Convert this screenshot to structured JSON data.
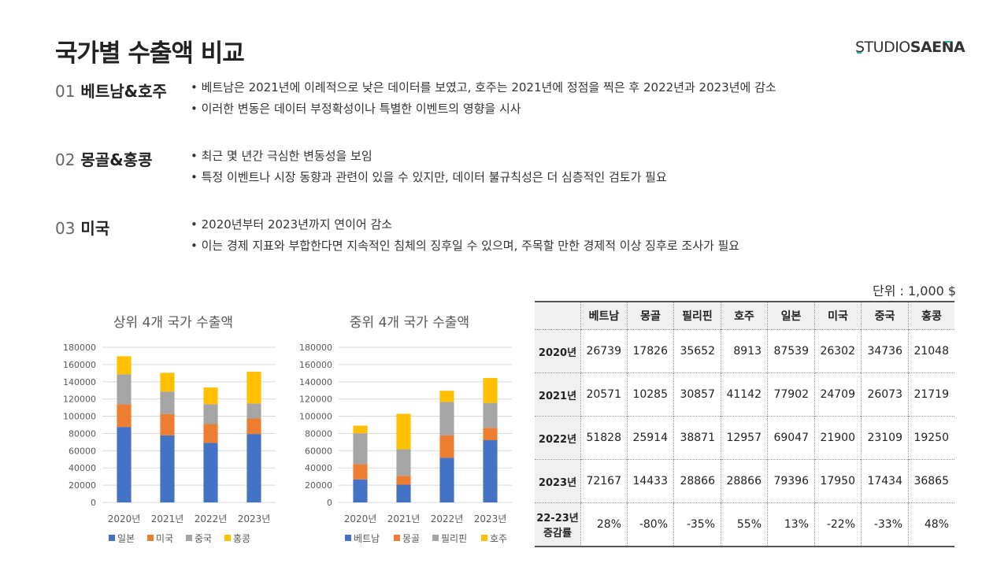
{
  "header": {
    "title": "국가별 수출액 비교",
    "logo_light": "STUDIO",
    "logo_bold": "SAENA"
  },
  "sections": [
    {
      "num": "01",
      "label": "베트남&호주",
      "bullets": [
        "• 베트남은 2021년에 이례적으로 낮은 데이터를 보였고, 호주는 2021년에 정점을 찍은 후 2022년과 2023년에 감소",
        "• 이러한 변동은 데이터 부정확성이나 특별한 이벤트의 영향을 시사"
      ]
    },
    {
      "num": "02",
      "label": "몽골&홍콩",
      "bullets": [
        "• 최근 몇 년간 극심한 변동성을 보임",
        "• 특정 이벤트나 시장 동향과 관련이 있을 수 있지만, 데이터 불규칙성은 더 심층적인 검토가 필요"
      ]
    },
    {
      "num": "03",
      "label": "미국",
      "bullets": [
        "• 2020년부터 2023년까지 연이어 감소",
        "• 이는 경제 지표와 부합한다면 지속적인 침체의 징후일 수 있으며, 주목할 만한 경제적 이상 징후로 조사가 필요"
      ]
    }
  ],
  "unit": "단위 : 1,000 $",
  "chart_data": [
    {
      "type": "bar",
      "stacked": true,
      "title": "상위 4개 국가 수출액",
      "categories": [
        "2020년",
        "2021년",
        "2022년",
        "2023년"
      ],
      "ylim": [
        0,
        180000
      ],
      "yticks": [
        0,
        20000,
        40000,
        60000,
        80000,
        100000,
        120000,
        140000,
        160000,
        180000
      ],
      "grid": true,
      "legend": "bottom",
      "series": [
        {
          "name": "일본",
          "color": "#4472c4",
          "values": [
            87539,
            77902,
            69047,
            79396
          ]
        },
        {
          "name": "미국",
          "color": "#ed7d31",
          "values": [
            26302,
            24709,
            21900,
            17950
          ]
        },
        {
          "name": "중국",
          "color": "#a5a5a5",
          "values": [
            34736,
            26073,
            23109,
            17434
          ]
        },
        {
          "name": "홍콩",
          "color": "#ffc000",
          "values": [
            21048,
            21719,
            19250,
            36865
          ]
        }
      ]
    },
    {
      "type": "bar",
      "stacked": true,
      "title": "중위 4개 국가 수출액",
      "categories": [
        "2020년",
        "2021년",
        "2022년",
        "2023년"
      ],
      "ylim": [
        0,
        180000
      ],
      "yticks": [
        0,
        20000,
        40000,
        60000,
        80000,
        100000,
        120000,
        140000,
        160000,
        180000
      ],
      "grid": true,
      "legend": "bottom",
      "series": [
        {
          "name": "베트남",
          "color": "#4472c4",
          "values": [
            26739,
            20571,
            51828,
            72167
          ]
        },
        {
          "name": "몽골",
          "color": "#ed7d31",
          "values": [
            17826,
            10285,
            25914,
            14433
          ]
        },
        {
          "name": "필리핀",
          "color": "#a5a5a5",
          "values": [
            35652,
            30857,
            38871,
            28866
          ]
        },
        {
          "name": "호주",
          "color": "#ffc000",
          "values": [
            8913,
            41142,
            12957,
            28866
          ]
        }
      ]
    }
  ],
  "table": {
    "columns": [
      "베트남",
      "몽골",
      "필리핀",
      "호주",
      "일본",
      "미국",
      "중국",
      "홍콩"
    ],
    "rows": [
      {
        "label": "2020년",
        "cells": [
          "26739",
          "17826",
          "35652",
          "8913",
          "87539",
          "26302",
          "34736",
          "21048"
        ]
      },
      {
        "label": "2021년",
        "cells": [
          "20571",
          "10285",
          "30857",
          "41142",
          "77902",
          "24709",
          "26073",
          "21719"
        ]
      },
      {
        "label": "2022년",
        "cells": [
          "51828",
          "25914",
          "38871",
          "12957",
          "69047",
          "21900",
          "23109",
          "19250"
        ]
      },
      {
        "label": "2023년",
        "cells": [
          "72167",
          "14433",
          "28866",
          "28866",
          "79396",
          "17950",
          "17434",
          "36865"
        ]
      },
      {
        "label_line1": "22-23년",
        "label_line2": "증감률",
        "cells": [
          "28%",
          "-80%",
          "-35%",
          "55%",
          "13%",
          "-22%",
          "-33%",
          "48%"
        ]
      }
    ]
  }
}
